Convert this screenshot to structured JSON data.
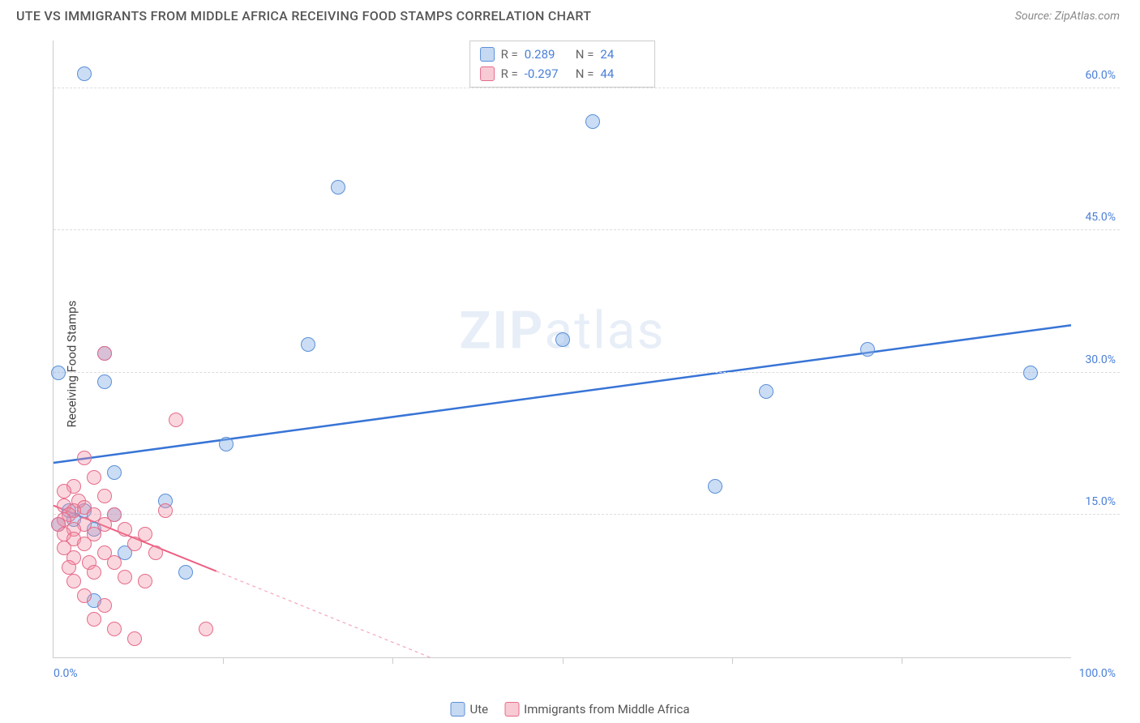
{
  "title": "UTE VS IMMIGRANTS FROM MIDDLE AFRICA RECEIVING FOOD STAMPS CORRELATION CHART",
  "source": "Source: ZipAtlas.com",
  "watermark_a": "ZIP",
  "watermark_b": "atlas",
  "chart": {
    "type": "scatter-correlation",
    "ylabel": "Receiving Food Stamps",
    "xlim": [
      0,
      100
    ],
    "ylim": [
      0,
      65
    ],
    "xtick_left": "0.0%",
    "xtick_right": "100.0%",
    "yticks": [
      {
        "v": 15,
        "label": "15.0%"
      },
      {
        "v": 30,
        "label": "30.0%"
      },
      {
        "v": 45,
        "label": "45.0%"
      },
      {
        "v": 60,
        "label": "60.0%"
      }
    ],
    "grid_color": "#dddddd",
    "background": "#ffffff",
    "point_radius": 9,
    "series": [
      {
        "name": "Ute",
        "color_fill": "rgba(140,180,230,0.45)",
        "color_stroke": "#5a8fd8",
        "R": "0.289",
        "N": "24",
        "trend": {
          "x1": 0,
          "y1": 20.5,
          "x2": 100,
          "y2": 35,
          "solid_until_x": 100,
          "stroke": "#3874d6",
          "width": 2.5
        },
        "points": [
          [
            3,
            61.5
          ],
          [
            28,
            49.5
          ],
          [
            53,
            56.5
          ],
          [
            0.5,
            30
          ],
          [
            5,
            32
          ],
          [
            5,
            29
          ],
          [
            25,
            33
          ],
          [
            50,
            33.5
          ],
          [
            80,
            32.5
          ],
          [
            96,
            30
          ],
          [
            70,
            28
          ],
          [
            65,
            18
          ],
          [
            17,
            22.5
          ],
          [
            4,
            13.5
          ],
          [
            6,
            19.5
          ],
          [
            11,
            16.5
          ],
          [
            3,
            15.5
          ],
          [
            2,
            14.5
          ],
          [
            7,
            11
          ],
          [
            13,
            9
          ],
          [
            4,
            6
          ],
          [
            0.5,
            14
          ],
          [
            1.5,
            15.5
          ],
          [
            6,
            15
          ]
        ]
      },
      {
        "name": "Immigrants from Middle Africa",
        "color_fill": "rgba(240,140,160,0.35)",
        "color_stroke": "#e56b8a",
        "R": "-0.297",
        "N": "44",
        "trend": {
          "x1": 0,
          "y1": 16,
          "x2": 37,
          "y2": 0,
          "solid_until_x": 16,
          "stroke": "#ec5e80",
          "width": 2
        },
        "points": [
          [
            5,
            32
          ],
          [
            12,
            25
          ],
          [
            3,
            21
          ],
          [
            4,
            19
          ],
          [
            2,
            18
          ],
          [
            1,
            17.5
          ],
          [
            5,
            17
          ],
          [
            2.5,
            16.5
          ],
          [
            1,
            16
          ],
          [
            3,
            15.8
          ],
          [
            2,
            15.5
          ],
          [
            11,
            15.5
          ],
          [
            1.5,
            15
          ],
          [
            4,
            15
          ],
          [
            6,
            15
          ],
          [
            1,
            14.5
          ],
          [
            0.5,
            14
          ],
          [
            3,
            14
          ],
          [
            5,
            14
          ],
          [
            2,
            13.5
          ],
          [
            7,
            13.5
          ],
          [
            1,
            13
          ],
          [
            4,
            13
          ],
          [
            9,
            13
          ],
          [
            2,
            12.5
          ],
          [
            3,
            12
          ],
          [
            8,
            12
          ],
          [
            1,
            11.5
          ],
          [
            5,
            11
          ],
          [
            10,
            11
          ],
          [
            2,
            10.5
          ],
          [
            3.5,
            10
          ],
          [
            6,
            10
          ],
          [
            1.5,
            9.5
          ],
          [
            4,
            9
          ],
          [
            7,
            8.5
          ],
          [
            2,
            8
          ],
          [
            9,
            8
          ],
          [
            3,
            6.5
          ],
          [
            5,
            5.5
          ],
          [
            4,
            4
          ],
          [
            6,
            3
          ],
          [
            15,
            3
          ],
          [
            8,
            2
          ]
        ]
      }
    ],
    "legend": [
      {
        "swatch": "blue",
        "label": "Ute"
      },
      {
        "swatch": "pink",
        "label": "Immigrants from Middle Africa"
      }
    ]
  }
}
